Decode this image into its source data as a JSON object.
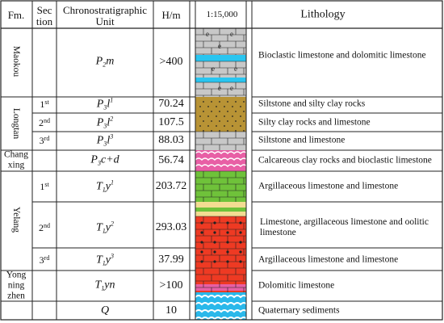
{
  "header": {
    "fm": "Fm.",
    "section_line1": "Sec",
    "section_line2": "tion",
    "unit_line1": "Chronostratigraphic",
    "unit_line2": "Unit",
    "hm": "H/m",
    "scale": "1:15,000",
    "lithology": "Lithology"
  },
  "formations": [
    {
      "name": "Maokou",
      "orientation": "vertical"
    },
    {
      "name": "Longtan",
      "orientation": "vertical"
    },
    {
      "name_line1": "Chang",
      "name_line2": "xing",
      "orientation": "horizontal"
    },
    {
      "name": "Yelang",
      "orientation": "vertical"
    },
    {
      "name_line1": "Yong",
      "name_line2": "ning",
      "name_line3": "zhen",
      "orientation": "horizontal"
    },
    {
      "name": "",
      "orientation": "horizontal"
    }
  ],
  "rows": [
    {
      "section": "",
      "unit_base": "P",
      "unit_sub": "2",
      "unit_rest": "m",
      "unit_sup": "",
      "thickness": ">400",
      "lithology": "Bioclastic limestone and dolomitic limestone"
    },
    {
      "section_num": "1",
      "section_sup": "st",
      "unit_base": "P",
      "unit_sub": "3",
      "unit_rest": "l",
      "unit_sup": "1",
      "thickness": "70.24",
      "lithology": "Siltstone and silty clay rocks"
    },
    {
      "section_num": "2",
      "section_sup": "nd",
      "unit_base": "P",
      "unit_sub": "3",
      "unit_rest": "l",
      "unit_sup": "2",
      "thickness": "107.5",
      "lithology": "Silty clay rocks and limestone"
    },
    {
      "section_num": "3",
      "section_sup": "rd",
      "unit_base": "P",
      "unit_sub": "3",
      "unit_rest": "l",
      "unit_sup": "3",
      "thickness": "88.03",
      "lithology": "Siltstone and limestone"
    },
    {
      "section": "",
      "unit_base": "P",
      "unit_sub": "3",
      "unit_rest": "c+d",
      "unit_sup": "",
      "thickness": "56.74",
      "lithology": "Calcareous clay rocks and bioclastic limestone"
    },
    {
      "section_num": "1",
      "section_sup": "st",
      "unit_base": "T",
      "unit_sub": "1",
      "unit_rest": "y",
      "unit_sup": "1",
      "thickness": "203.72",
      "lithology": "Argillaceous limestone and limestone"
    },
    {
      "section_num": "2",
      "section_sup": "nd",
      "unit_base": "T",
      "unit_sub": "1",
      "unit_rest": "y",
      "unit_sup": "2",
      "thickness": "293.03",
      "lithology": "Limestone, argillaceous limestone and oolitic limestone"
    },
    {
      "section_num": "3",
      "section_sup": "rd",
      "unit_base": "T",
      "unit_sub": "1",
      "unit_rest": "y",
      "unit_sup": "3",
      "thickness": "37.99",
      "lithology": "Argillaceous limestone and limestone"
    },
    {
      "section": "",
      "unit_base": "T",
      "unit_sub": "1",
      "unit_rest": "yn",
      "unit_sup": "",
      "thickness": ">100",
      "lithology": "Dolomitic limestone"
    },
    {
      "section": "",
      "unit_base": "Q",
      "unit_sub": "",
      "unit_rest": "",
      "unit_sup": "",
      "thickness": "10",
      "lithology": "Quaternary sediments"
    }
  ],
  "column_symbol": "e",
  "colors": {
    "limestone_gray": "#c8c8c8",
    "dolomite_cyan": "#29c5f0",
    "silt_tan": "#b89335",
    "clay_pink": "#e85fa5",
    "argillaceous_green": "#6fc23a",
    "oolite_red": "#ee3a23",
    "sand_yellow": "#f3dc92",
    "quaternary_cyan": "#2ab8ea"
  }
}
